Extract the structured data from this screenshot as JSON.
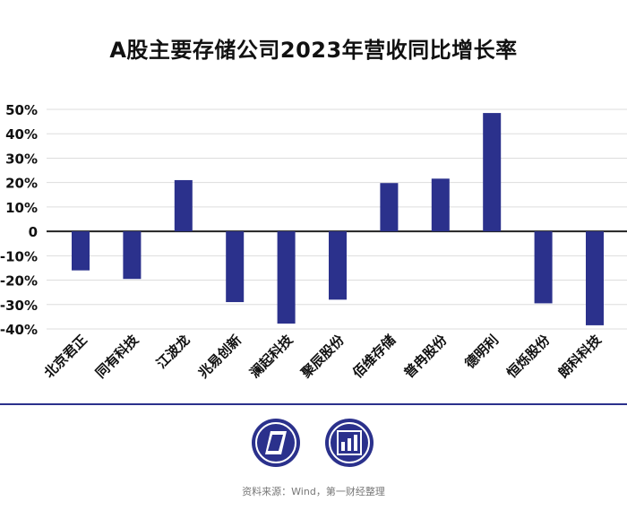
{
  "title": "A股主要存储公司2023年营收同比增长率",
  "source": "资料来源：Wind，第一财经整理",
  "colors": {
    "bar": "#2B318C",
    "axis": "#222222",
    "grid": "#dddddd",
    "divider": "#2B318C",
    "logo": "#2B318C"
  },
  "logos": {
    "left": "parallelogram-logo-icon",
    "right": "bar-chart-logo-icon"
  },
  "chart_data": {
    "type": "bar",
    "title": "A股主要存储公司2023年营收同比增长率",
    "categories": [
      "北京君正",
      "同有科技",
      "江波龙",
      "兆易创新",
      "澜起科技",
      "聚辰股份",
      "佰维存储",
      "普冉股份",
      "德明利",
      "恒烁股份",
      "朗科科技"
    ],
    "values": [
      -16,
      -19.5,
      21,
      -29,
      -37.8,
      -28,
      19.8,
      21.6,
      48.5,
      -29.5,
      -38.5
    ],
    "ylim": [
      -40,
      50
    ],
    "yticks": [
      50,
      40,
      30,
      20,
      10,
      0,
      -10,
      -20,
      -30,
      -40
    ],
    "ytick_labels": [
      "50%",
      "40%",
      "30%",
      "20%",
      "10%",
      "0",
      "-10%",
      "-20%",
      "-30%",
      "-40%"
    ],
    "xlabel": "",
    "ylabel": "",
    "grid": true,
    "legend": "none"
  }
}
